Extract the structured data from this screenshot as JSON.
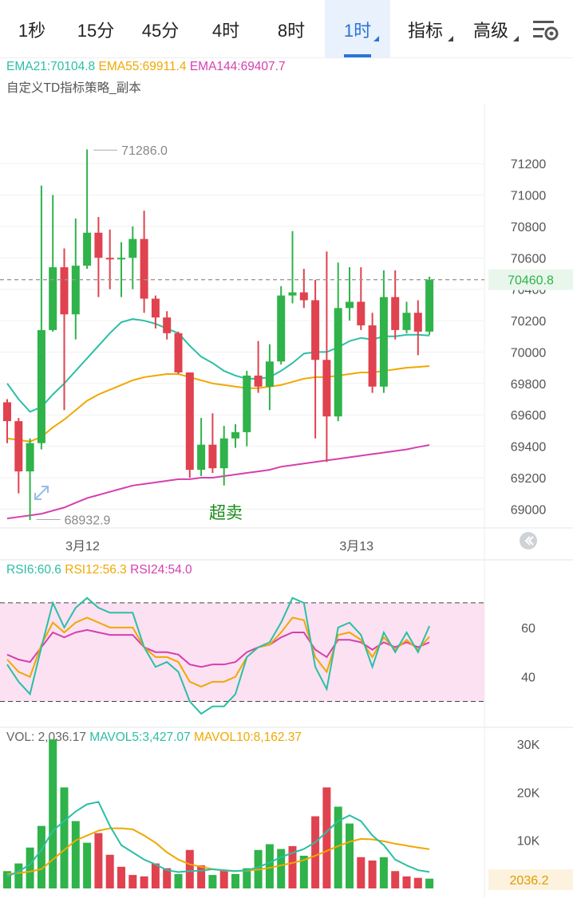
{
  "tabs": [
    {
      "label": "1秒",
      "active": false,
      "dropdown": false
    },
    {
      "label": "15分",
      "active": false,
      "dropdown": false
    },
    {
      "label": "45分",
      "active": false,
      "dropdown": false
    },
    {
      "label": "4时",
      "active": false,
      "dropdown": false
    },
    {
      "label": "8时",
      "active": false,
      "dropdown": false
    },
    {
      "label": "1时",
      "active": true,
      "dropdown": true
    },
    {
      "label": "指标",
      "active": false,
      "dropdown": true
    },
    {
      "label": "高级",
      "active": false,
      "dropdown": true
    }
  ],
  "settings_icon": "chart-settings-icon",
  "colors": {
    "up": "#2fb34a",
    "down": "#e0424f",
    "ema21": "#2bbfa4",
    "ema55": "#f0a800",
    "ema144": "#d63fae",
    "rsi_band": "#fbe1f2",
    "price_line": "#999999",
    "overbought_label": "#1b8a1b"
  },
  "chart_data": [
    {
      "type": "candlestick",
      "title": "",
      "indicator_label": "自定义TD指标策略_副本",
      "legend": {
        "ema21": "EMA21:70104.8",
        "ema55": "EMA55:69911.4",
        "ema144": "EMA144:69407.7"
      },
      "y_ticks": [
        71200,
        71000,
        70800,
        70600,
        70400,
        70200,
        70000,
        69800,
        69600,
        69400,
        69200,
        69000
      ],
      "ylim": [
        68890,
        71480
      ],
      "x_labels": [
        {
          "label": "3月12",
          "index": 5
        },
        {
          "label": "3月13",
          "index": 29
        }
      ],
      "current_price": "70460.8",
      "current_price_value": 70460.8,
      "max_marker": {
        "label": "71286.0",
        "value": 71286.0,
        "index": 7
      },
      "min_marker": {
        "label": "68932.9",
        "value": 68932.9,
        "index": 2
      },
      "annotation": "超卖",
      "candles": [
        [
          69680,
          69560,
          69700,
          69420
        ],
        [
          69560,
          69240,
          69580,
          69100
        ],
        [
          69240,
          69420,
          69450,
          68930
        ],
        [
          69420,
          70140,
          71060,
          69380
        ],
        [
          70140,
          70540,
          71000,
          70130
        ],
        [
          70540,
          70240,
          70660,
          69630
        ],
        [
          70240,
          70550,
          70850,
          70080
        ],
        [
          70550,
          70760,
          71290,
          70530
        ],
        [
          70760,
          70600,
          70860,
          70350
        ],
        [
          70600,
          70590,
          70780,
          70400
        ],
        [
          70590,
          70600,
          70700,
          70350
        ],
        [
          70600,
          70720,
          70800,
          70400
        ],
        [
          70720,
          70340,
          70900,
          70250
        ],
        [
          70340,
          70220,
          70360,
          70150
        ],
        [
          70220,
          70120,
          70260,
          70080
        ],
        [
          70120,
          69870,
          70130,
          69860
        ],
        [
          69870,
          69250,
          69870,
          69200
        ],
        [
          69250,
          69410,
          69580,
          69210
        ],
        [
          69410,
          69260,
          69610,
          69230
        ],
        [
          69260,
          69450,
          69530,
          69150
        ],
        [
          69450,
          69490,
          69540,
          69390
        ],
        [
          69490,
          69850,
          69880,
          69400
        ],
        [
          69850,
          69780,
          70070,
          69740
        ],
        [
          69780,
          69940,
          70050,
          69630
        ],
        [
          69940,
          70360,
          70420,
          69920
        ],
        [
          70360,
          70380,
          70770,
          70310
        ],
        [
          70380,
          70330,
          70530,
          70280
        ],
        [
          70330,
          69950,
          70460,
          69450
        ],
        [
          69950,
          69590,
          70640,
          69300
        ],
        [
          69590,
          70280,
          70570,
          69560
        ],
        [
          70280,
          70320,
          70540,
          70200
        ],
        [
          70320,
          70170,
          70540,
          70140
        ],
        [
          70170,
          69780,
          70250,
          69740
        ],
        [
          69780,
          70350,
          70520,
          69740
        ],
        [
          70350,
          70140,
          70520,
          70080
        ],
        [
          70140,
          70250,
          70320,
          70120
        ],
        [
          70250,
          70130,
          70330,
          69980
        ],
        [
          70130,
          70460,
          70480,
          70110
        ]
      ],
      "ema21": [
        69800,
        69700,
        69620,
        69650,
        69730,
        69800,
        69880,
        69960,
        70040,
        70120,
        70190,
        70210,
        70200,
        70180,
        70150,
        70120,
        70040,
        69970,
        69930,
        69880,
        69850,
        69830,
        69830,
        69840,
        69880,
        69930,
        69990,
        70000,
        70000,
        70030,
        70070,
        70090,
        70080,
        70100,
        70100,
        70110,
        70110,
        70105
      ],
      "ema55": [
        69450,
        69440,
        69430,
        69460,
        69520,
        69570,
        69630,
        69690,
        69730,
        69760,
        69790,
        69820,
        69840,
        69850,
        69860,
        69860,
        69840,
        69820,
        69800,
        69790,
        69780,
        69770,
        69770,
        69780,
        69790,
        69810,
        69830,
        69840,
        69840,
        69850,
        69860,
        69870,
        69870,
        69880,
        69890,
        69900,
        69905,
        69911
      ],
      "ema144": [
        68940,
        68950,
        68960,
        68970,
        68990,
        69010,
        69040,
        69070,
        69090,
        69110,
        69130,
        69150,
        69160,
        69170,
        69180,
        69190,
        69190,
        69200,
        69200,
        69210,
        69220,
        69230,
        69240,
        69250,
        69270,
        69280,
        69290,
        69300,
        69310,
        69320,
        69330,
        69340,
        69350,
        69360,
        69370,
        69380,
        69395,
        69408
      ]
    },
    {
      "type": "line",
      "title": "",
      "legend": {
        "rsi6": "RSI6:60.6",
        "rsi12": "RSI12:56.3",
        "rsi24": "RSI24:54.0"
      },
      "y_ticks": [
        60,
        40
      ],
      "ylim": [
        25,
        80
      ],
      "bands": [
        30,
        70
      ],
      "series": [
        {
          "name": "RSI6",
          "values": [
            45,
            38,
            33,
            52,
            70,
            60,
            68,
            72,
            68,
            66,
            66,
            66,
            52,
            44,
            46,
            42,
            30,
            25,
            28,
            28,
            33,
            48,
            52,
            54,
            62,
            72,
            70,
            44,
            35,
            60,
            62,
            57,
            44,
            58,
            50,
            58,
            50,
            60.6
          ]
        },
        {
          "name": "RSI12",
          "values": [
            47,
            42,
            40,
            53,
            62,
            58,
            62,
            64,
            62,
            60,
            60,
            60,
            52,
            48,
            48,
            46,
            38,
            36,
            38,
            38,
            40,
            48,
            52,
            53,
            58,
            64,
            63,
            48,
            42,
            57,
            58,
            55,
            48,
            56,
            51,
            55,
            51,
            56.3
          ]
        },
        {
          "name": "RSI24",
          "values": [
            49,
            47,
            46,
            52,
            58,
            56,
            58,
            59,
            58,
            57,
            57,
            57,
            52,
            50,
            50,
            49,
            45,
            44,
            45,
            45,
            46,
            50,
            52,
            53,
            56,
            58,
            58,
            51,
            48,
            55,
            55,
            54,
            51,
            54,
            52,
            54,
            52,
            54.0
          ]
        }
      ]
    },
    {
      "type": "bar",
      "title": "",
      "legend": {
        "vol": "VOL: 2,036.17",
        "mavol5": "MAVOL5:3,427.07",
        "mavol10": "MAVOL10:8,162.37"
      },
      "y_ticks": [
        {
          "label": "30K",
          "value": 30000
        },
        {
          "label": "20K",
          "value": 20000
        },
        {
          "label": "10K",
          "value": 10000
        }
      ],
      "ylim": [
        0,
        33000
      ],
      "current_value": "2036.2",
      "values": [
        3600,
        5200,
        8500,
        13000,
        31000,
        21000,
        14000,
        9500,
        11500,
        7000,
        4500,
        2800,
        2500,
        5200,
        4200,
        3000,
        8000,
        4800,
        2800,
        3800,
        3000,
        4200,
        8000,
        9200,
        8200,
        8800,
        6800,
        15000,
        21000,
        17000,
        13500,
        6500,
        5800,
        6500,
        3600,
        2500,
        2200,
        2036
      ],
      "dir": [
        "up",
        "up",
        "up",
        "up",
        "up",
        "up",
        "up",
        "up",
        "down",
        "down",
        "down",
        "down",
        "down",
        "down",
        "down",
        "up",
        "down",
        "down",
        "up",
        "down",
        "up",
        "up",
        "up",
        "up",
        "up",
        "down",
        "up",
        "down",
        "down",
        "up",
        "up",
        "down",
        "down",
        "up",
        "down",
        "down",
        "down",
        "up"
      ],
      "mavol5": [
        2500,
        3500,
        5000,
        8000,
        12000,
        14000,
        16000,
        17500,
        18000,
        13000,
        9000,
        7500,
        6000,
        5000,
        3800,
        3400,
        3600,
        3700,
        4000,
        3800,
        3600,
        3800,
        4400,
        5400,
        6500,
        7400,
        8200,
        9600,
        11800,
        14000,
        15200,
        14000,
        11000,
        9000,
        6000,
        4800,
        3800,
        3427
      ],
      "mavol10": [
        3000,
        3200,
        3500,
        4000,
        6000,
        8000,
        10000,
        11000,
        12000,
        12500,
        12500,
        12300,
        11000,
        9500,
        7500,
        6000,
        5000,
        4500,
        4000,
        3700,
        3600,
        3700,
        3900,
        4300,
        4800,
        5300,
        5900,
        6800,
        7800,
        8800,
        9700,
        10300,
        10200,
        9800,
        9300,
        8900,
        8500,
        8162
      ]
    }
  ]
}
